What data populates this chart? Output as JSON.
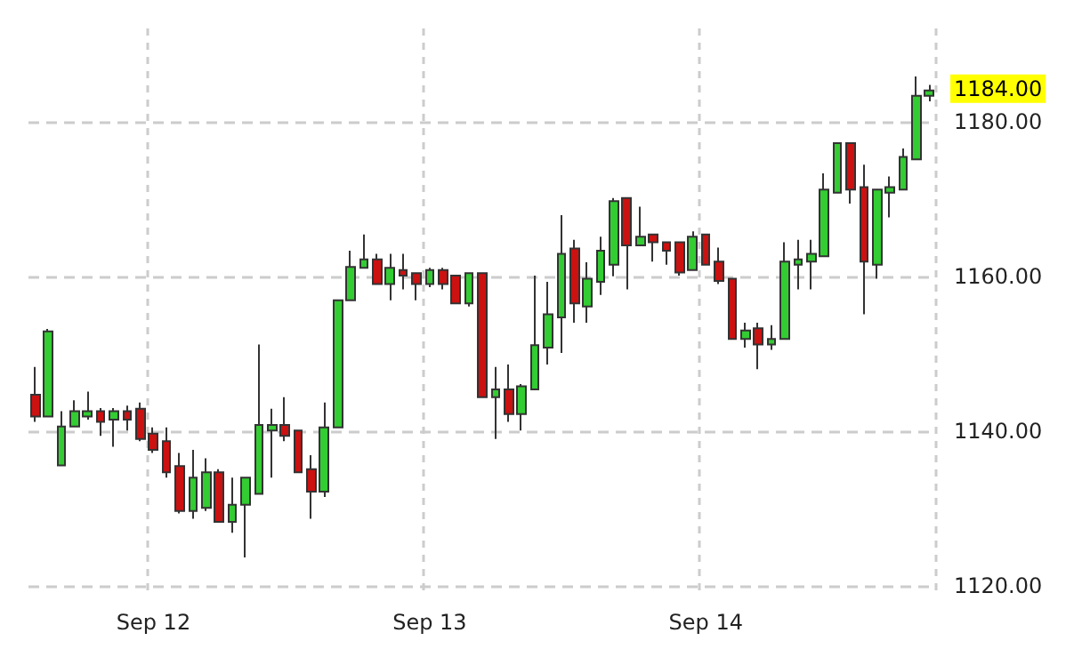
{
  "chart_data": {
    "type": "candlestick",
    "categories": [
      null,
      null,
      null,
      null,
      null,
      null,
      null,
      null,
      null,
      "Sep 12",
      null,
      null,
      null,
      null,
      null,
      null,
      null,
      null,
      null,
      null,
      null,
      null,
      null,
      null,
      null,
      null,
      null,
      null,
      null,
      null,
      "Sep 13",
      null,
      null,
      null,
      null,
      null,
      null,
      null,
      null,
      null,
      null,
      null,
      null,
      null,
      null,
      null,
      null,
      null,
      null,
      null,
      null,
      "Sep 14",
      null,
      null,
      null,
      null,
      null,
      null,
      null,
      null,
      null,
      null,
      null,
      null,
      null,
      null,
      null,
      null,
      null
    ],
    "ohlc": [
      [
        1144.7,
        1148.3,
        1141.2,
        1141.9
      ],
      [
        1141.9,
        1153.2,
        1141.9,
        1152.9
      ],
      [
        1135.6,
        1142.6,
        1135.6,
        1140.6
      ],
      [
        1140.6,
        1144.0,
        1140.6,
        1142.6
      ],
      [
        1141.9,
        1145.1,
        1141.5,
        1142.6
      ],
      [
        1142.6,
        1143.0,
        1139.4,
        1141.2
      ],
      [
        1141.5,
        1143.0,
        1138.0,
        1142.6
      ],
      [
        1142.6,
        1143.3,
        1140.1,
        1141.5
      ],
      [
        1142.9,
        1143.7,
        1138.7,
        1139.0
      ],
      [
        1139.7,
        1140.5,
        1137.2,
        1137.6
      ],
      [
        1138.7,
        1140.5,
        1134.0,
        1134.7
      ],
      [
        1135.5,
        1137.2,
        1129.4,
        1129.7
      ],
      [
        1129.7,
        1137.6,
        1128.7,
        1134.0
      ],
      [
        1130.1,
        1136.5,
        1129.7,
        1134.7
      ],
      [
        1134.7,
        1135.1,
        1128.3,
        1128.3
      ],
      [
        1128.3,
        1134.0,
        1126.9,
        1130.5
      ],
      [
        1130.5,
        1134.0,
        1123.7,
        1134.0
      ],
      [
        1131.9,
        1151.2,
        1131.9,
        1140.8
      ],
      [
        1140.1,
        1142.9,
        1134.0,
        1140.8
      ],
      [
        1140.8,
        1144.4,
        1138.7,
        1139.4
      ],
      [
        1140.1,
        1140.1,
        1134.7,
        1134.7
      ],
      [
        1135.1,
        1136.9,
        1128.7,
        1132.2
      ],
      [
        1132.2,
        1143.7,
        1131.5,
        1140.5
      ],
      [
        1140.5,
        1156.9,
        1140.5,
        1156.9
      ],
      [
        1156.9,
        1163.3,
        1156.9,
        1161.2
      ],
      [
        1161.1,
        1165.4,
        1161.1,
        1162.2
      ],
      [
        1162.2,
        1162.9,
        1159.0,
        1159.0
      ],
      [
        1159.0,
        1162.9,
        1156.9,
        1161.1
      ],
      [
        1160.8,
        1162.9,
        1158.3,
        1160.1
      ],
      [
        1160.4,
        1160.4,
        1156.9,
        1159.0
      ],
      [
        1159.0,
        1161.1,
        1158.6,
        1160.8
      ],
      [
        1160.8,
        1161.1,
        1158.3,
        1159.0
      ],
      [
        1160.1,
        1160.1,
        1156.5,
        1156.5
      ],
      [
        1156.5,
        1160.4,
        1156.1,
        1160.4
      ],
      [
        1160.4,
        1160.4,
        1144.4,
        1144.4
      ],
      [
        1144.4,
        1148.3,
        1139.0,
        1145.4
      ],
      [
        1145.4,
        1148.6,
        1141.2,
        1142.2
      ],
      [
        1142.2,
        1146.1,
        1140.1,
        1145.8
      ],
      [
        1145.4,
        1160.1,
        1145.4,
        1151.1
      ],
      [
        1150.8,
        1159.3,
        1148.6,
        1155.1
      ],
      [
        1154.7,
        1167.9,
        1150.1,
        1162.9
      ],
      [
        1163.6,
        1164.7,
        1154.0,
        1156.5
      ],
      [
        1156.1,
        1161.8,
        1154.0,
        1159.7
      ],
      [
        1159.3,
        1165.1,
        1157.6,
        1163.3
      ],
      [
        1161.5,
        1170.1,
        1160.0,
        1169.7
      ],
      [
        1170.1,
        1170.1,
        1158.3,
        1164.0
      ],
      [
        1164.0,
        1169.0,
        1164.0,
        1165.1
      ],
      [
        1165.4,
        1165.4,
        1161.9,
        1164.4
      ],
      [
        1164.4,
        1164.4,
        1161.5,
        1163.3
      ],
      [
        1164.4,
        1164.4,
        1160.1,
        1160.5
      ],
      [
        1160.8,
        1165.8,
        1160.8,
        1165.1
      ],
      [
        1165.4,
        1165.4,
        1161.5,
        1161.5
      ],
      [
        1161.9,
        1163.7,
        1159.0,
        1159.4
      ],
      [
        1159.7,
        1159.7,
        1151.9,
        1151.9
      ],
      [
        1151.9,
        1154.0,
        1150.8,
        1153.0
      ],
      [
        1153.3,
        1154.0,
        1148.0,
        1151.2
      ],
      [
        1151.2,
        1153.7,
        1150.5,
        1151.9
      ],
      [
        1151.9,
        1164.4,
        1151.9,
        1161.9
      ],
      [
        1161.5,
        1164.7,
        1158.3,
        1162.2
      ],
      [
        1161.9,
        1164.7,
        1158.3,
        1162.9
      ],
      [
        1162.6,
        1173.3,
        1162.6,
        1171.2
      ],
      [
        1170.8,
        1177.2,
        1170.8,
        1177.2
      ],
      [
        1177.2,
        1177.2,
        1169.4,
        1171.2
      ],
      [
        1171.5,
        1174.4,
        1155.1,
        1161.9
      ],
      [
        1161.5,
        1171.2,
        1159.7,
        1171.2
      ],
      [
        1170.8,
        1172.9,
        1167.6,
        1171.5
      ],
      [
        1171.2,
        1176.5,
        1171.2,
        1175.4
      ],
      [
        1175.1,
        1185.8,
        1175.1,
        1183.3
      ],
      [
        1183.3,
        1184.7,
        1182.6,
        1184.0
      ]
    ],
    "colors": [
      "#cc1111",
      "#33cc33",
      "#33cc33",
      "#33cc33",
      "#33cc33",
      "#cc1111",
      "#33cc33",
      "#cc1111",
      "#cc1111",
      "#cc1111",
      "#cc1111",
      "#cc1111",
      "#33cc33",
      "#33cc33",
      "#cc1111",
      "#33cc33",
      "#33cc33",
      "#33cc33",
      "#33cc33",
      "#cc1111",
      "#cc1111",
      "#cc1111",
      "#33cc33",
      "#33cc33",
      "#33cc33",
      "#33cc33",
      "#cc1111",
      "#33cc33",
      "#cc1111",
      "#cc1111",
      "#33cc33",
      "#cc1111",
      "#cc1111",
      "#33cc33",
      "#cc1111",
      "#33cc33",
      "#cc1111",
      "#33cc33",
      "#33cc33",
      "#33cc33",
      "#33cc33",
      "#cc1111",
      "#33cc33",
      "#33cc33",
      "#33cc33",
      "#cc1111",
      "#33cc33",
      "#cc1111",
      "#cc1111",
      "#cc1111",
      "#33cc33",
      "#cc1111",
      "#cc1111",
      "#cc1111",
      "#33cc33",
      "#cc1111",
      "#33cc33",
      "#33cc33",
      "#33cc33",
      "#33cc33",
      "#33cc33",
      "#33cc33",
      "#cc1111",
      "#cc1111",
      "#33cc33",
      "#33cc33",
      "#33cc33",
      "#33cc33",
      "#33cc33"
    ],
    "ylim": [
      1119,
      1192
    ],
    "yticks": [
      {
        "value": 1120,
        "label": "1120.00"
      },
      {
        "value": 1140,
        "label": "1140.00"
      },
      {
        "value": 1160,
        "label": "1160.00"
      },
      {
        "value": 1180,
        "label": "1180.00"
      }
    ],
    "annotations": [
      "1184.00"
    ],
    "grid": true
  }
}
